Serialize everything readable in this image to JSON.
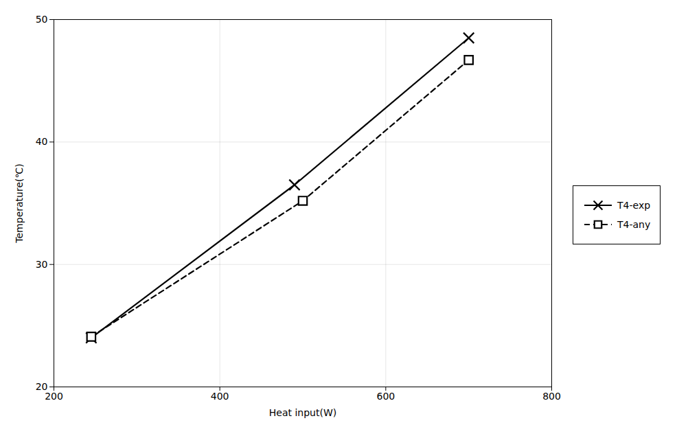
{
  "chart_data": {
    "type": "line",
    "xlabel": "Heat input(W)",
    "ylabel": "Temperature(℃)",
    "xlim": [
      200,
      800
    ],
    "ylim": [
      20,
      50
    ],
    "xticks": [
      200,
      400,
      600,
      800
    ],
    "yticks": [
      20,
      30,
      40,
      50
    ],
    "grid": true,
    "legend": "right",
    "series": [
      {
        "name": "T4-exp",
        "color": "#000000",
        "marker": "x",
        "line_style": "solid",
        "x": [
          245,
          490,
          700
        ],
        "values": [
          24.0,
          36.5,
          48.5
        ]
      },
      {
        "name": "T4-any",
        "color": "#000000",
        "marker": "square",
        "line_style": "dashed",
        "x": [
          245,
          500,
          700
        ],
        "values": [
          24.1,
          35.2,
          46.7
        ]
      }
    ]
  }
}
